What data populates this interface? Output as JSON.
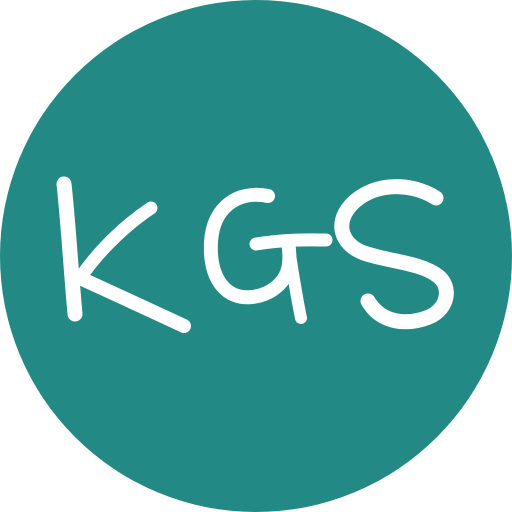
{
  "logo": {
    "text": "KGS",
    "background_color": "#238985",
    "letter_color": "#ffffff"
  }
}
